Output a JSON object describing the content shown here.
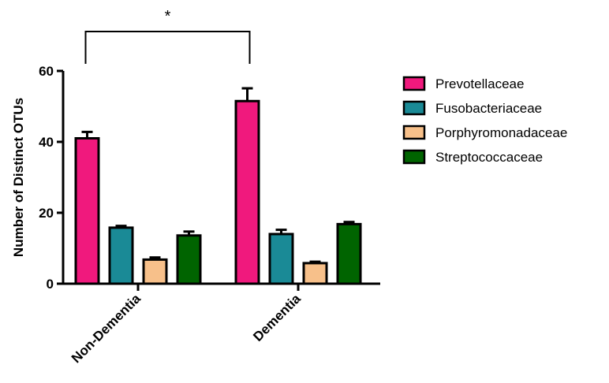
{
  "chart_data": {
    "type": "bar",
    "title": "",
    "xlabel": "",
    "ylabel": "Number of Distinct OTUs",
    "ylim": [
      0,
      60
    ],
    "yticks": [
      0,
      20,
      40,
      60
    ],
    "categories": [
      "Non-Dementia",
      "Dementia"
    ],
    "series": [
      {
        "name": "Prevotellaceae",
        "color": "#f0197d",
        "values": [
          41,
          51.5
        ],
        "errors": [
          1.8,
          3.6
        ]
      },
      {
        "name": "Fusobacteriaceae",
        "color": "#1a8a96",
        "values": [
          15.8,
          14
        ],
        "errors": [
          0.5,
          1.2
        ]
      },
      {
        "name": "Porphyromonadaceae",
        "color": "#f7c08a",
        "values": [
          6.8,
          5.8
        ],
        "errors": [
          0.6,
          0.4
        ]
      },
      {
        "name": "Streptococcaceae",
        "color": "#006400",
        "values": [
          13.6,
          16.8
        ],
        "errors": [
          1.1,
          0.6
        ]
      }
    ],
    "legend_position": "right",
    "grid": false,
    "annotations": [
      {
        "text": "*",
        "type": "significance-bracket",
        "between": [
          "Non-Dementia Prevotellaceae",
          "Dementia Prevotellaceae"
        ]
      }
    ]
  }
}
